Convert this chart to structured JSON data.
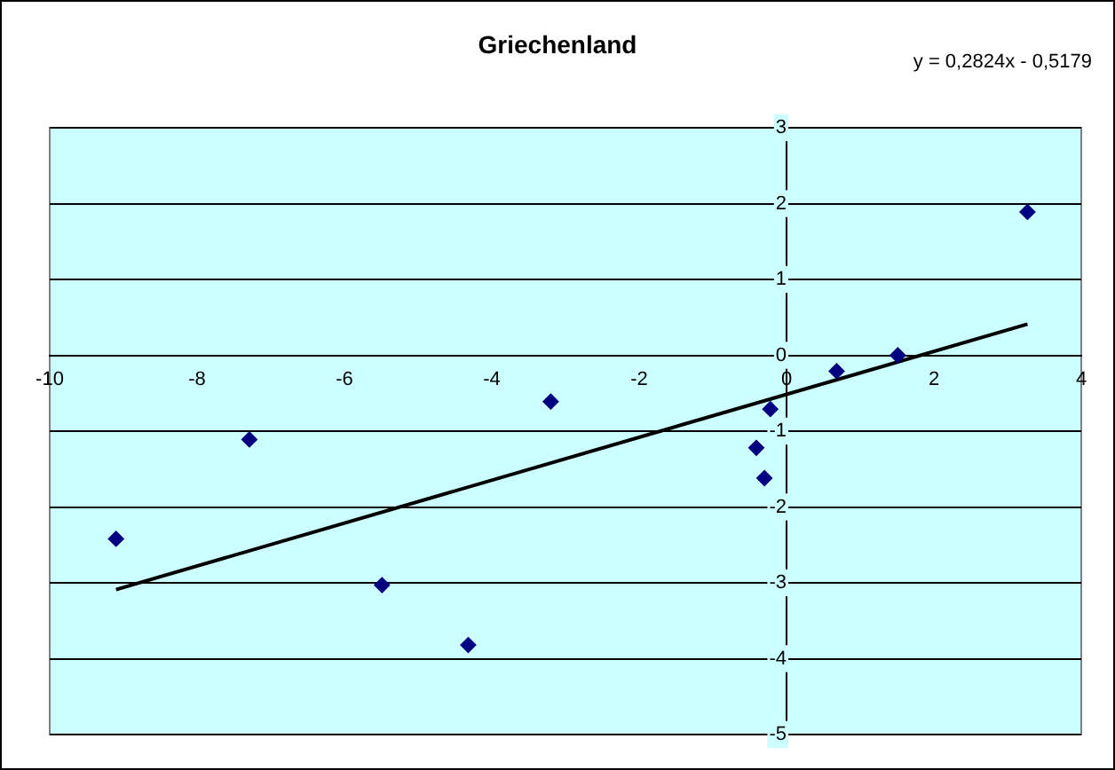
{
  "chart_data": {
    "type": "scatter",
    "title": "Griechenland",
    "xlim": [
      -10,
      4
    ],
    "xticks": [
      -10,
      -8,
      -6,
      -4,
      -2,
      0,
      2,
      4
    ],
    "ylim": [
      -5,
      3
    ],
    "yticks": [
      -5,
      -4,
      -3,
      -2,
      -1,
      0,
      1,
      2,
      3
    ],
    "series": [
      {
        "color": "#000080",
        "marker": "diamond",
        "x": [
          -9.1,
          -7.29,
          -5.49,
          -4.32,
          -3.2,
          -0.22,
          -0.41,
          -0.3,
          0.68,
          1.51,
          3.27
        ],
        "values": [
          -2.42,
          -1.11,
          -3.03,
          -3.82,
          -0.61,
          -0.71,
          -1.22,
          -1.62,
          -0.21,
          0.0,
          1.89
        ]
      },
      {
        "type": "line",
        "color": "#000000",
        "marker": "none",
        "x": [
          -9.1,
          3.27
        ],
        "values": [
          -3.09,
          0.41
        ]
      }
    ],
    "annotations": [
      "y = 0,2824x - 0,5179"
    ],
    "grid": "y",
    "legend": false,
    "line_style": "solid"
  }
}
